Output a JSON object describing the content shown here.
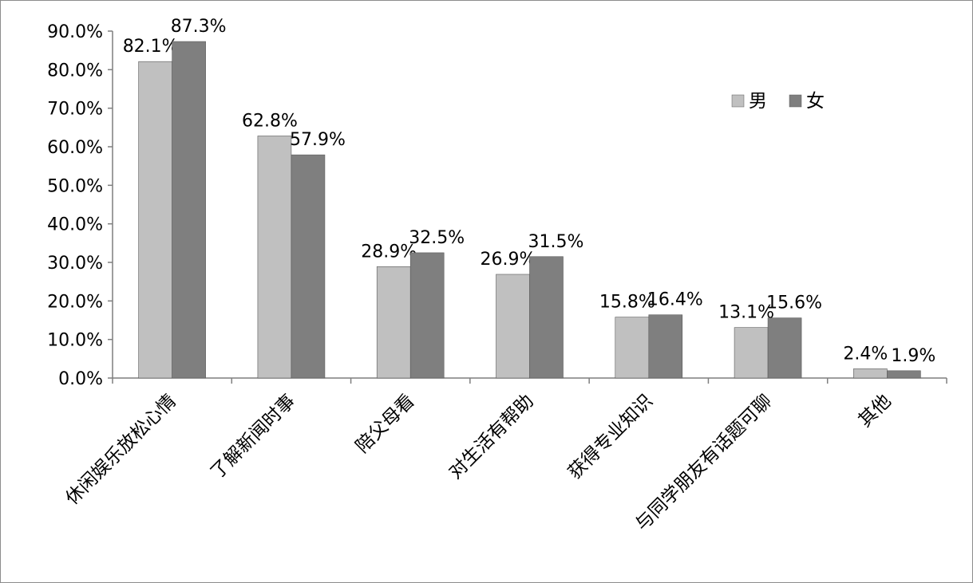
{
  "chart_data": {
    "type": "bar",
    "categories": [
      "休闲娱乐放松心情",
      "了解新闻时事",
      "陪父母看",
      "对生活有帮助",
      "获得专业知识",
      "与同学朋友有话题可聊",
      "其他"
    ],
    "series": [
      {
        "name": "男",
        "values": [
          82.1,
          62.8,
          28.9,
          26.9,
          15.8,
          13.1,
          2.4
        ],
        "color": "#c0c0c0",
        "labels": [
          "82.1%",
          "62.8%",
          "28.9%",
          "26.9%",
          "15.8%",
          "13.1%",
          "2.4%"
        ]
      },
      {
        "name": "女",
        "values": [
          87.3,
          57.9,
          32.5,
          31.5,
          16.4,
          15.6,
          1.9
        ],
        "color": "#7f7f7f",
        "labels": [
          "87.3%",
          "57.9%",
          "32.5%",
          "31.5%",
          "16.4%",
          "15.6%",
          "1.9%"
        ]
      }
    ],
    "y_ticks": [
      "0.0%",
      "10.0%",
      "20.0%",
      "30.0%",
      "40.0%",
      "50.0%",
      "60.0%",
      "70.0%",
      "80.0%",
      "90.0%"
    ],
    "ylim": [
      0,
      90
    ],
    "grid": false,
    "legend": "top-right",
    "title": "",
    "xlabel": "",
    "ylabel": ""
  }
}
